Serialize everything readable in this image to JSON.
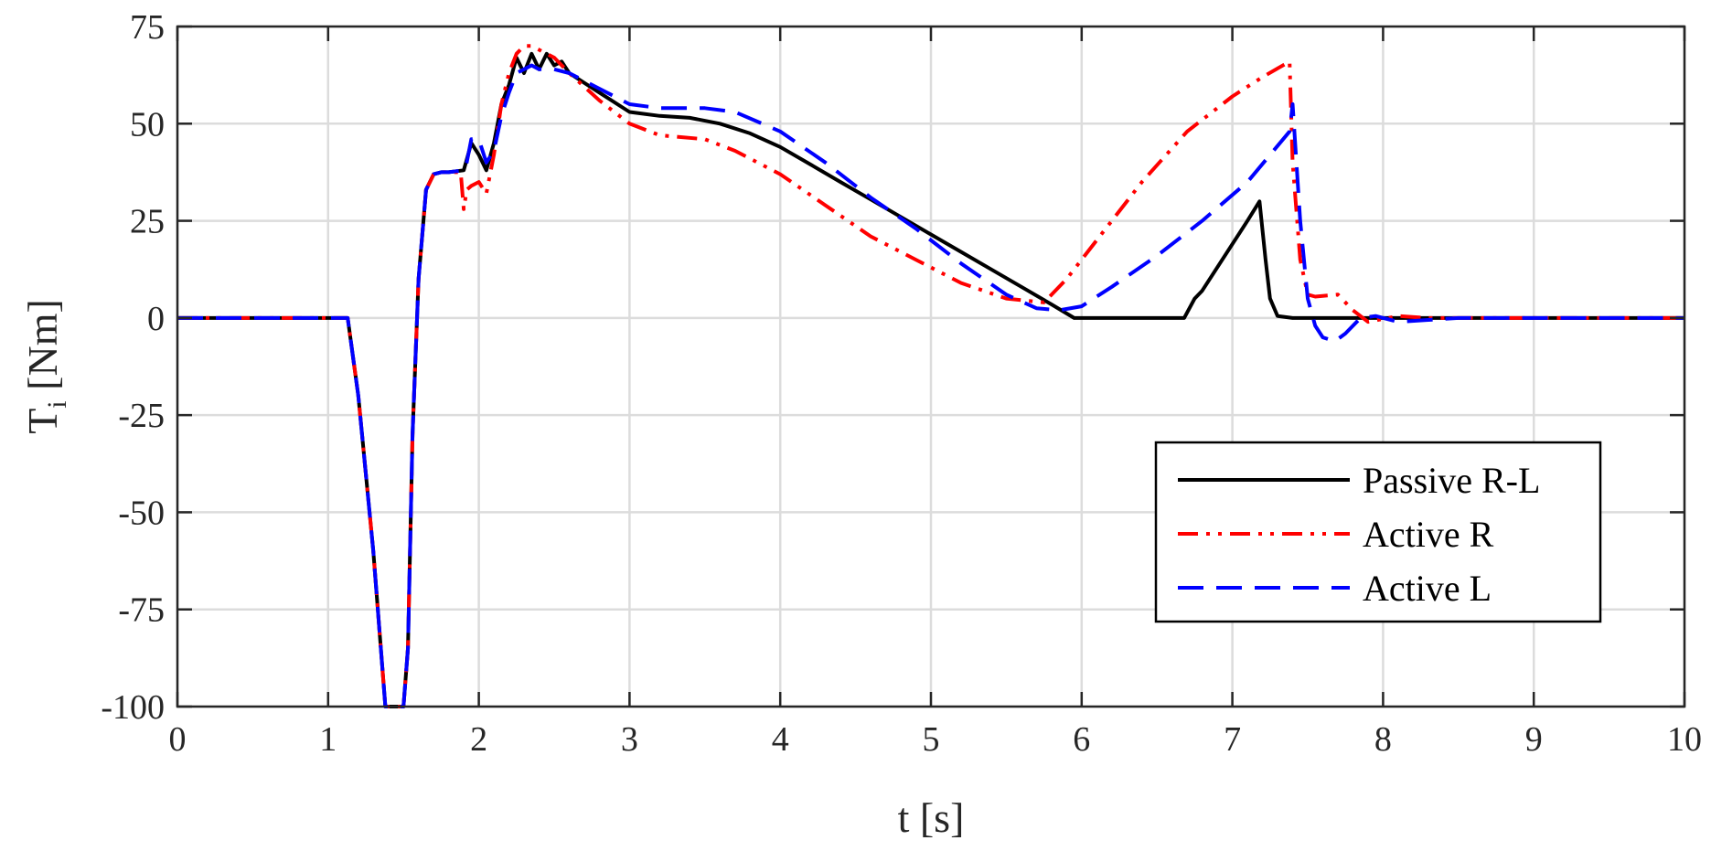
{
  "chart_data": {
    "type": "line",
    "xlabel": "t [s]",
    "ylabel_main": "T",
    "ylabel_sub": "i",
    "ylabel_unit": " [Nm]",
    "xlim": [
      0,
      10
    ],
    "ylim": [
      -100,
      75
    ],
    "xticks": [
      0,
      1,
      2,
      3,
      4,
      5,
      6,
      7,
      8,
      9,
      10
    ],
    "yticks": [
      -100,
      -75,
      -50,
      -25,
      0,
      25,
      50,
      75
    ],
    "grid": true,
    "legend_position": "bottom-right",
    "series": [
      {
        "name": "Passive R-L",
        "color": "#000000",
        "style": "solid",
        "x": [
          0,
          1.05,
          1.1,
          1.13,
          1.2,
          1.3,
          1.38,
          1.44,
          1.5,
          1.53,
          1.56,
          1.6,
          1.65,
          1.7,
          1.75,
          1.8,
          1.9,
          1.95,
          2.0,
          2.05,
          2.1,
          2.15,
          2.2,
          2.25,
          2.3,
          2.35,
          2.4,
          2.45,
          2.5,
          2.55,
          2.6,
          2.8,
          3.0,
          3.2,
          3.4,
          3.6,
          3.8,
          4.0,
          4.2,
          4.4,
          4.6,
          4.8,
          5.0,
          5.2,
          5.4,
          5.6,
          5.8,
          5.95,
          6.0,
          6.5,
          6.68,
          6.75,
          6.8,
          6.9,
          7.0,
          7.1,
          7.18,
          7.22,
          7.25,
          7.3,
          7.4,
          8.0,
          10
        ],
        "y": [
          0,
          0,
          0,
          0,
          -20,
          -60,
          -100,
          -100,
          -100,
          -85,
          -30,
          10,
          33,
          37,
          37.5,
          37.5,
          38,
          45,
          42,
          38,
          45,
          55,
          60,
          67,
          63,
          68,
          64,
          68,
          65,
          66,
          63,
          58,
          53,
          52,
          51.5,
          50,
          47.5,
          44,
          39.5,
          35,
          30.5,
          26,
          21.5,
          17,
          12.5,
          8,
          3.5,
          0,
          0,
          0,
          0,
          5,
          7,
          13,
          19,
          25,
          30,
          15,
          5,
          0.5,
          0,
          0,
          0
        ]
      },
      {
        "name": "Active R",
        "color": "#ff0000",
        "style": "dashdot",
        "x": [
          0,
          1.05,
          1.1,
          1.13,
          1.2,
          1.3,
          1.38,
          1.44,
          1.5,
          1.53,
          1.56,
          1.6,
          1.65,
          1.7,
          1.75,
          1.8,
          1.88,
          1.9,
          1.92,
          1.95,
          2.0,
          2.05,
          2.1,
          2.15,
          2.2,
          2.25,
          2.3,
          2.35,
          2.4,
          2.5,
          2.6,
          2.8,
          3.0,
          3.2,
          3.5,
          3.7,
          4.0,
          4.3,
          4.6,
          4.9,
          5.2,
          5.5,
          5.75,
          5.9,
          6.1,
          6.4,
          6.7,
          7.0,
          7.2,
          7.38,
          7.4,
          7.45,
          7.5,
          7.55,
          7.7,
          7.8,
          7.9,
          8.1,
          8.3,
          10
        ],
        "y": [
          0,
          0,
          0,
          0,
          -20,
          -60,
          -100,
          -100,
          -100,
          -85,
          -30,
          10,
          33,
          37,
          37.5,
          37.5,
          37.5,
          28,
          33,
          34,
          35,
          32,
          42,
          55,
          63,
          68,
          70,
          70,
          69,
          67,
          63,
          56,
          50,
          47,
          46,
          43,
          37,
          29,
          21,
          15,
          9,
          5,
          4,
          10,
          20,
          35,
          48,
          57,
          62,
          66,
          40,
          15,
          6,
          5.5,
          6,
          2,
          -1,
          0.5,
          0,
          0
        ]
      },
      {
        "name": "Active L",
        "color": "#0000ff",
        "style": "dashed",
        "x": [
          0,
          1.05,
          1.1,
          1.13,
          1.2,
          1.3,
          1.38,
          1.44,
          1.5,
          1.53,
          1.56,
          1.6,
          1.65,
          1.7,
          1.75,
          1.8,
          1.9,
          1.92,
          1.95,
          2.0,
          2.05,
          2.1,
          2.15,
          2.2,
          2.25,
          2.3,
          2.35,
          2.4,
          2.5,
          2.6,
          2.8,
          3.0,
          3.2,
          3.5,
          3.7,
          4.0,
          4.3,
          4.6,
          4.9,
          5.2,
          5.5,
          5.7,
          5.85,
          6.0,
          6.2,
          6.5,
          6.8,
          7.1,
          7.38,
          7.4,
          7.45,
          7.5,
          7.55,
          7.6,
          7.68,
          7.75,
          7.85,
          7.95,
          8.1,
          8.3,
          8.5,
          10
        ],
        "y": [
          0,
          0,
          0,
          0,
          -20,
          -60,
          -100,
          -100,
          -100,
          -85,
          -30,
          10,
          33,
          37,
          37.5,
          37.5,
          38,
          40,
          46,
          46,
          40,
          43,
          52,
          58,
          63,
          64,
          65,
          64,
          64,
          63,
          59,
          55,
          54,
          54,
          53,
          48,
          40,
          31,
          23,
          14,
          6,
          2.5,
          2,
          3,
          8,
          16,
          25,
          35,
          48,
          55,
          25,
          5,
          -2,
          -5,
          -6,
          -4,
          0,
          0.5,
          -1,
          -0.5,
          0,
          0
        ]
      }
    ]
  }
}
